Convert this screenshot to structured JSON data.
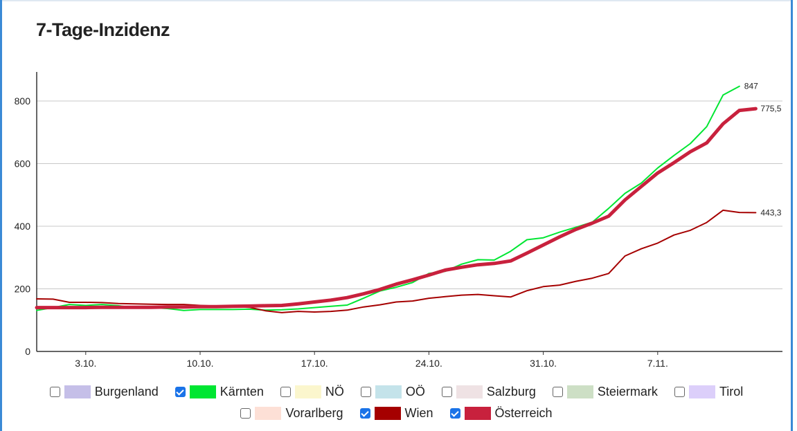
{
  "page": {
    "title": "7-Tage-Inzidenz"
  },
  "chart_data": {
    "type": "line",
    "title": "7-Tage-Inzidenz",
    "xlabel": "",
    "ylabel": "",
    "ylim": [
      0,
      900
    ],
    "y_ticks": [
      0,
      200,
      400,
      600,
      800
    ],
    "x_ticks": [
      {
        "index": 3,
        "label": "3.10."
      },
      {
        "index": 10,
        "label": "10.10."
      },
      {
        "index": 17,
        "label": "17.10."
      },
      {
        "index": 24,
        "label": "24.10."
      },
      {
        "index": 31,
        "label": "31.10."
      },
      {
        "index": 38,
        "label": "7.11."
      }
    ],
    "grid": true,
    "legend_position": "bottom",
    "series": [
      {
        "name": "Kärnten",
        "color": "#00e632",
        "width": 2,
        "values": [
          131,
          140,
          150,
          147,
          150,
          146,
          139,
          140,
          137,
          131,
          134,
          134,
          134,
          135,
          132,
          133,
          136,
          140,
          144,
          148,
          170,
          193,
          205,
          220,
          249,
          256,
          279,
          293,
          292,
          320,
          357,
          363,
          381,
          397,
          413,
          457,
          505,
          538,
          586,
          626,
          664,
          718,
          819,
          847
        ],
        "end_label": "847"
      },
      {
        "name": "Wien",
        "color": "#a50000",
        "width": 2,
        "values": [
          168,
          167,
          157,
          157,
          156,
          153,
          152,
          151,
          150,
          150,
          147,
          145,
          143,
          141,
          130,
          124,
          128,
          126,
          128,
          132,
          142,
          149,
          158,
          161,
          170,
          175,
          180,
          182,
          178,
          174,
          194,
          207,
          212,
          224,
          234,
          249,
          305,
          328,
          346,
          372,
          387,
          412,
          451,
          444,
          443.3
        ],
        "end_label": "443,3"
      },
      {
        "name": "Österreich",
        "color": "#c8213d",
        "width": 5,
        "values": [
          140,
          140,
          140,
          140,
          141,
          141,
          141,
          141,
          142,
          142,
          143,
          143,
          144,
          145,
          146,
          147,
          152,
          158,
          164,
          172,
          184,
          198,
          215,
          229,
          244,
          260,
          269,
          277,
          281,
          289,
          314,
          340,
          366,
          390,
          410,
          432,
          484,
          527,
          570,
          603,
          638,
          666,
          727,
          770,
          775.5
        ],
        "end_label": "775,5"
      }
    ]
  },
  "legend": {
    "items": [
      {
        "label": "Burgenland",
        "color": "#c5bfe8",
        "checked": false
      },
      {
        "label": "Kärnten",
        "color": "#00e632",
        "checked": true
      },
      {
        "label": "NÖ",
        "color": "#fbf6cd",
        "checked": false
      },
      {
        "label": "OÖ",
        "color": "#c4e3ea",
        "checked": false
      },
      {
        "label": "Salzburg",
        "color": "#efe2e4",
        "checked": false
      },
      {
        "label": "Steiermark",
        "color": "#cddfc5",
        "checked": false
      },
      {
        "label": "Tirol",
        "color": "#dccffa",
        "checked": false
      },
      {
        "label": "Vorarlberg",
        "color": "#fde0d6",
        "checked": false
      },
      {
        "label": "Wien",
        "color": "#a50000",
        "checked": true
      },
      {
        "label": "Österreich",
        "color": "#c8213d",
        "checked": true
      }
    ]
  }
}
